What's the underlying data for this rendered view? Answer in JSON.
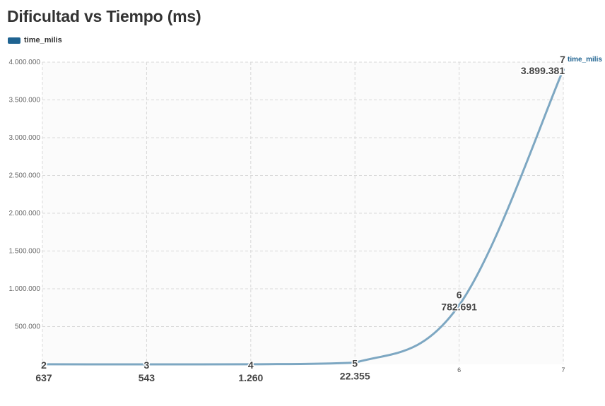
{
  "title": "Dificultad vs Tiempo (ms)",
  "legend": {
    "label": "time_milis",
    "color": "#1f6391"
  },
  "colors": {
    "line": "#7da7c2",
    "grid": "#d8d8d8",
    "plot_bg": "#fbfbfb"
  },
  "chart_data": {
    "type": "line",
    "title": "Dificultad vs Tiempo (ms)",
    "xlabel": "",
    "ylabel": "",
    "ylim": [
      0,
      4000000
    ],
    "xlim": [
      2,
      7
    ],
    "y_ticks": [
      "4.000.000",
      "3.500.000",
      "3.000.000",
      "2.500.000",
      "2.000.000",
      "1.500.000",
      "1.000.000",
      "500.000"
    ],
    "x_tick_labels": [
      "6",
      "7"
    ],
    "grid": true,
    "legend_position": "top-left",
    "series": [
      {
        "name": "time_milis",
        "x": [
          2,
          3,
          4,
          5,
          6,
          7
        ],
        "values": [
          637,
          543,
          1260,
          22355,
          782691,
          3899381
        ],
        "value_labels": [
          "637",
          "543",
          "1.260",
          "22.355",
          "782.691",
          "3.899.381"
        ],
        "category_labels": [
          "2",
          "3",
          "4",
          "5",
          "6",
          "7"
        ]
      }
    ],
    "series_end_label": "time_milis"
  }
}
